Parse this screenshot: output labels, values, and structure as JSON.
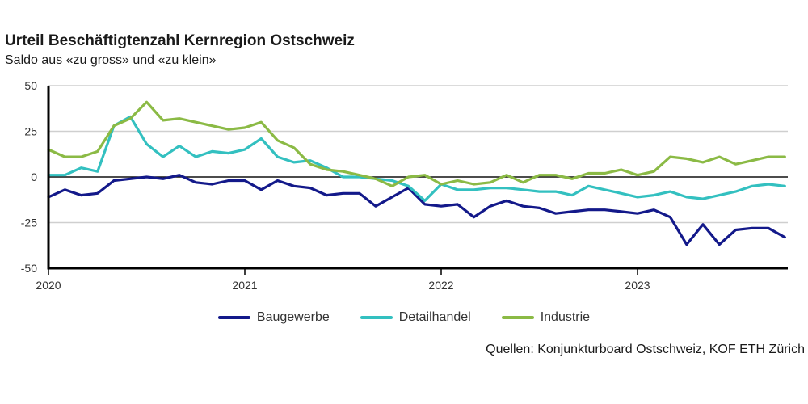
{
  "title": "Urteil Beschäftigtenzahl Kernregion Ostschweiz",
  "subtitle": "Saldo aus «zu gross» und «zu klein»",
  "source": "Quellen: Konjunkturboard Ostschweiz, KOF ETH Zürich",
  "chart_data": {
    "type": "line",
    "ylim": [
      -50,
      50
    ],
    "yticks": [
      "50",
      "25",
      "0",
      "-25",
      "-50"
    ],
    "xtick_labels": [
      "2020",
      "2021",
      "2022",
      "2023"
    ],
    "x_start": "2020-01",
    "grid": true,
    "legend_position": "bottom",
    "series": [
      {
        "name": "Baugewerbe",
        "color": "#13198a",
        "values": [
          -11,
          -7,
          -10,
          -9,
          -2,
          -1,
          0,
          -1,
          1,
          -3,
          -4,
          -2,
          -2,
          -7,
          -2,
          -5,
          -6,
          -10,
          -9,
          -9,
          -16,
          -11,
          -6,
          -15,
          -16,
          -15,
          -22,
          -16,
          -13,
          -16,
          -17,
          -20,
          -19,
          -18,
          -18,
          -19,
          -20,
          -18,
          -22,
          -37,
          -26,
          -37,
          -29,
          -28,
          -28,
          -33
        ]
      },
      {
        "name": "Detailhandel",
        "color": "#33c0c0",
        "values": [
          1,
          1,
          5,
          3,
          28,
          33,
          18,
          11,
          17,
          11,
          14,
          13,
          15,
          21,
          11,
          8,
          9,
          5,
          0,
          0,
          -1,
          -2,
          -5,
          -13,
          -4,
          -7,
          -7,
          -6,
          -6,
          -7,
          -8,
          -8,
          -10,
          -5,
          -7,
          -9,
          -11,
          -10,
          -8,
          -11,
          -12,
          -10,
          -8,
          -5,
          -4,
          -5
        ]
      },
      {
        "name": "Industrie",
        "color": "#8bba45",
        "values": [
          15,
          11,
          11,
          14,
          28,
          32,
          41,
          31,
          32,
          30,
          28,
          26,
          27,
          30,
          20,
          16,
          7,
          4,
          3,
          1,
          -1,
          -5,
          0,
          1,
          -4,
          -2,
          -4,
          -3,
          1,
          -3,
          1,
          1,
          -1,
          2,
          2,
          4,
          1,
          3,
          11,
          10,
          8,
          11,
          7,
          9,
          11,
          11
        ]
      }
    ]
  }
}
